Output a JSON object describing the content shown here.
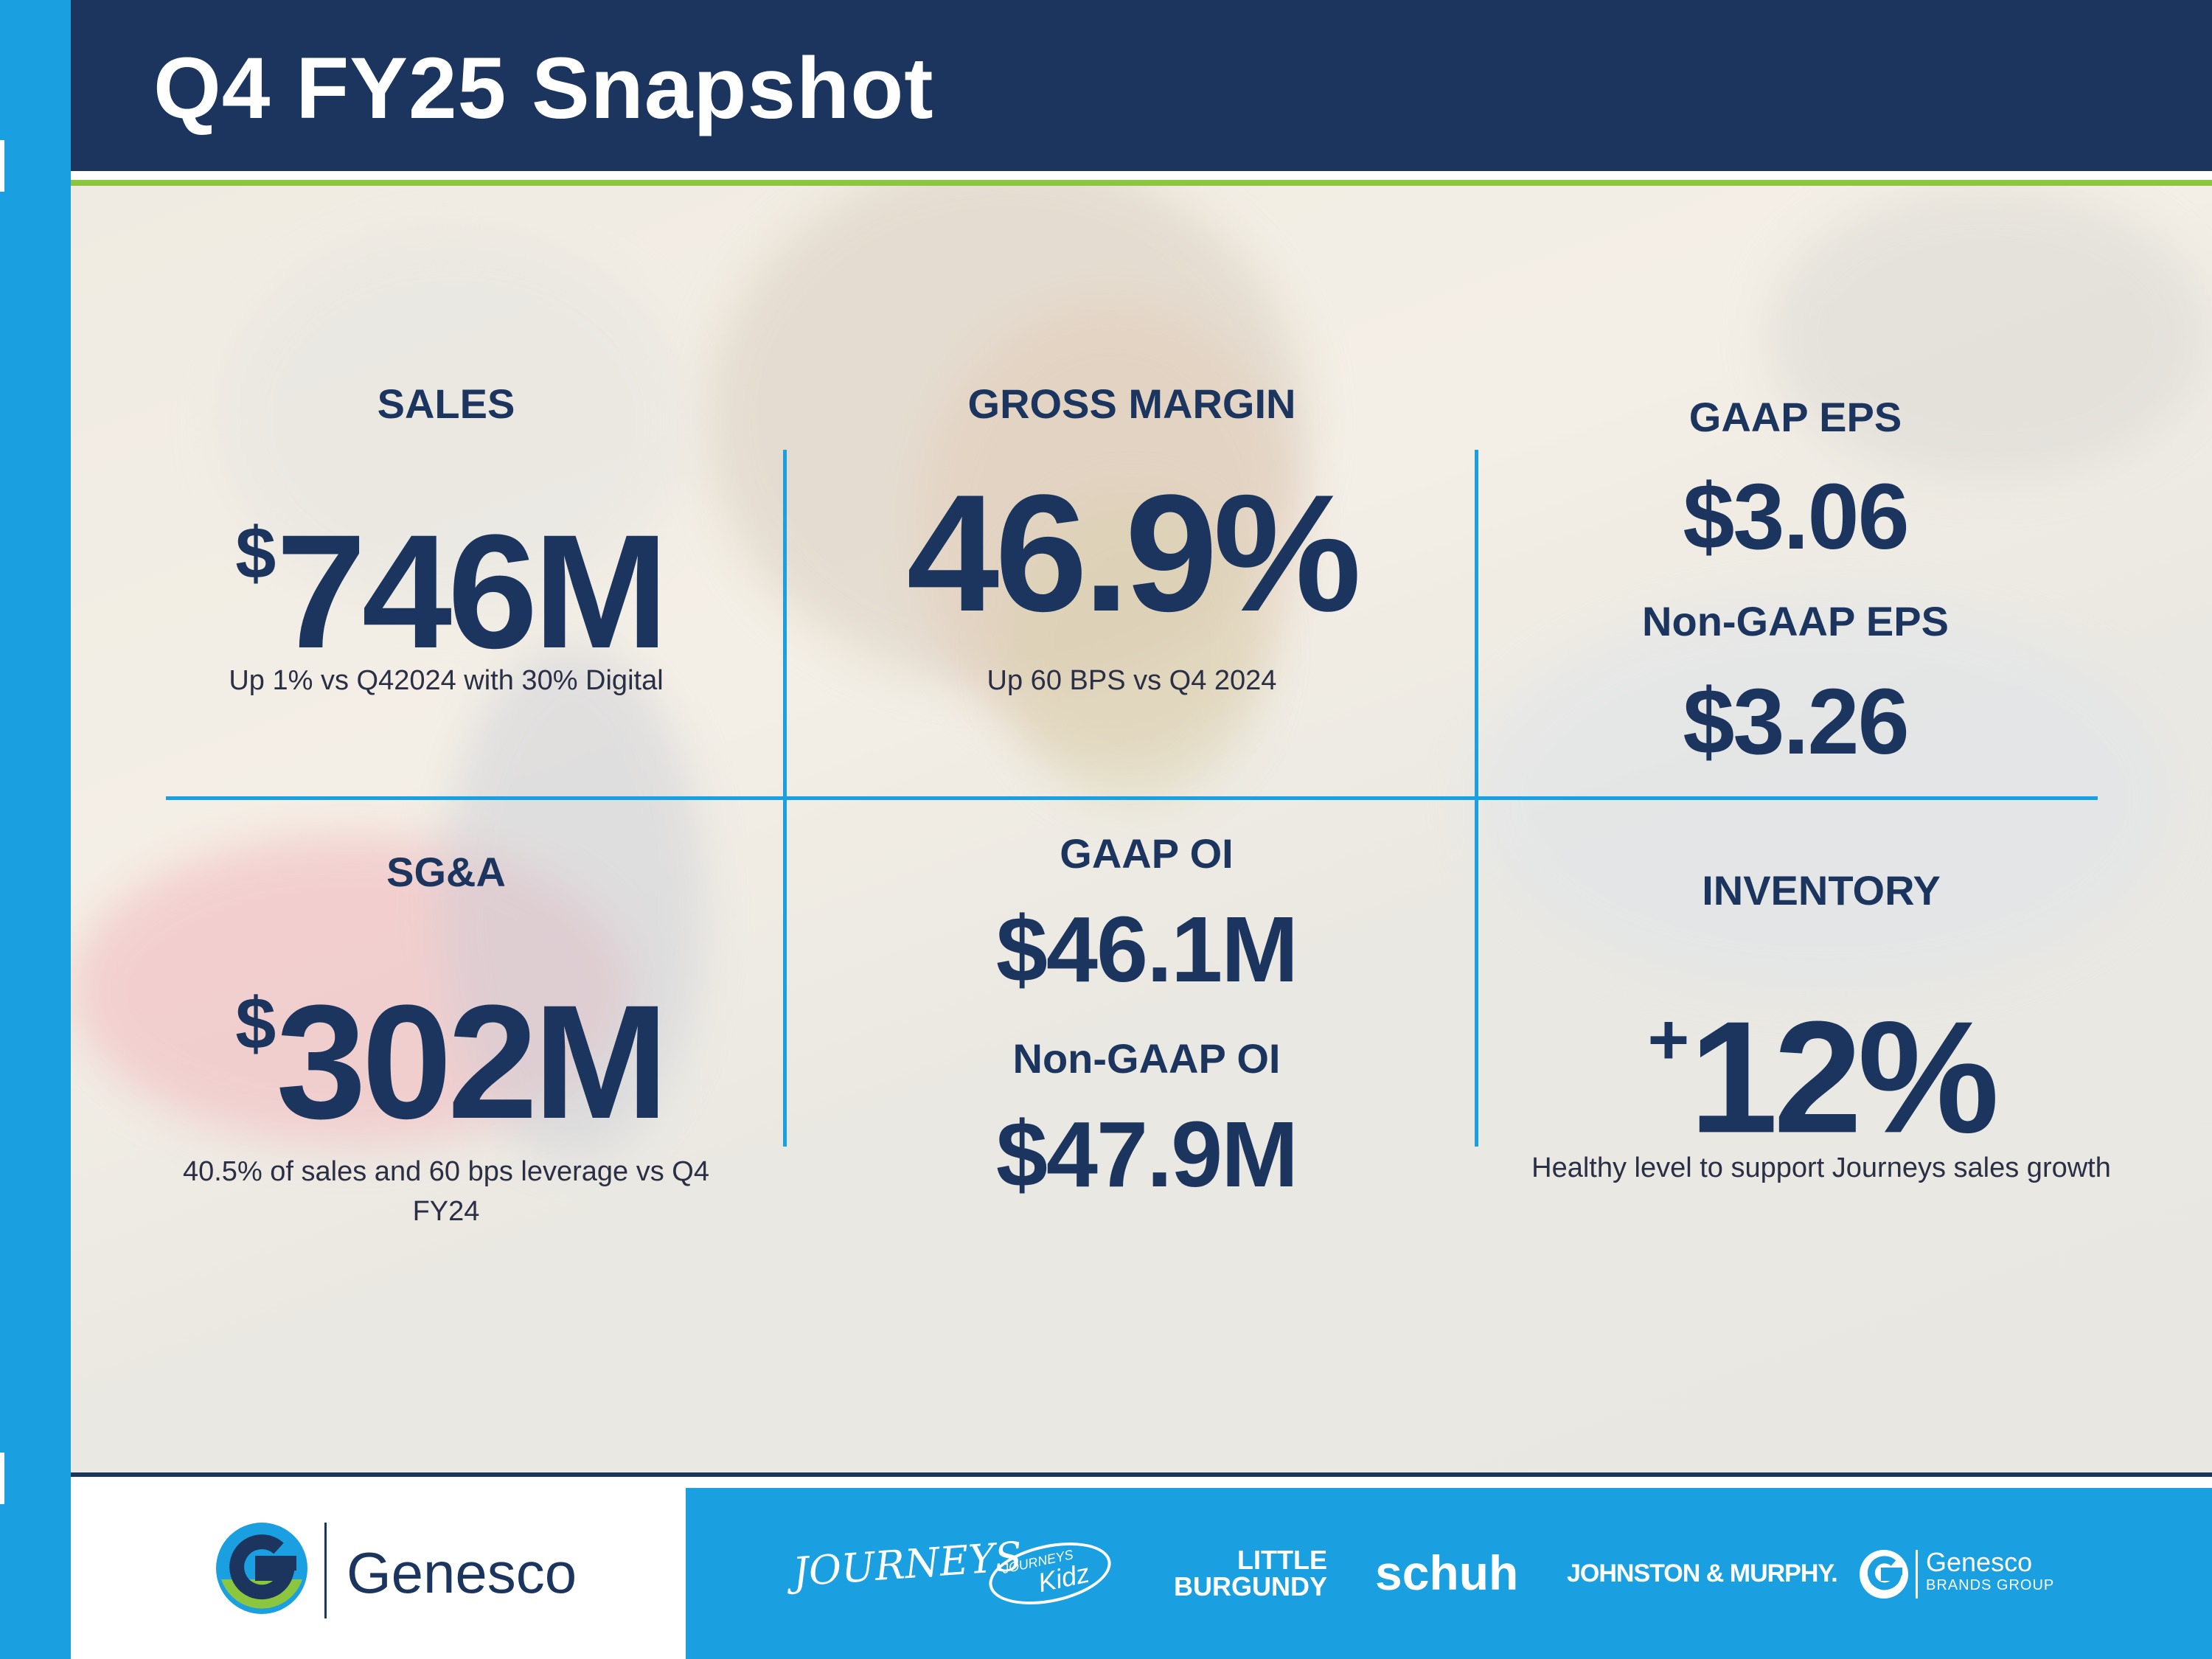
{
  "title": "Q4 FY25 Snapshot",
  "colors": {
    "navy": "#1c355e",
    "blue": "#1aa0e0",
    "green": "#8cc63f"
  },
  "metrics": {
    "sales": {
      "label": "SALES",
      "currency": "$",
      "value": "746M",
      "note": "Up 1% vs Q42024 with 30% Digital"
    },
    "gross_margin": {
      "label": "GROSS MARGIN",
      "value": "46.9%",
      "note": "Up 60 BPS vs Q4 2024"
    },
    "eps": {
      "gaap_label": "GAAP EPS",
      "gaap_value": "$3.06",
      "non_gaap_label": "Non-GAAP EPS",
      "non_gaap_value": "$3.26"
    },
    "sga": {
      "label": "SG&A",
      "currency": "$",
      "value": "302M",
      "note_line1": "40.5% of sales and 60 bps leverage vs Q4",
      "note_line2": "FY24"
    },
    "oi": {
      "gaap_label": "GAAP OI",
      "gaap_value": "$46.1M",
      "non_gaap_label": "Non-GAAP OI",
      "non_gaap_value": "$47.9M"
    },
    "inventory": {
      "label": "INVENTORY",
      "sign": "+",
      "value": "12%",
      "note": "Healthy level to support Journeys sales growth"
    }
  },
  "footer": {
    "company": "Genesco",
    "brands": {
      "journeys": "JOURNEYS",
      "journeys_kidz_top": "JOURNEYS",
      "journeys_kidz_bottom": "Kidz",
      "little_burgundy_top": "LITTLE",
      "little_burgundy_bottom": "BURGUNDY",
      "schuh": "schuh",
      "johnston_murphy": "JOHNSTON & MURPHY.",
      "genesco_brands_top": "Genesco",
      "genesco_brands_bottom": "BRANDS GROUP"
    }
  }
}
